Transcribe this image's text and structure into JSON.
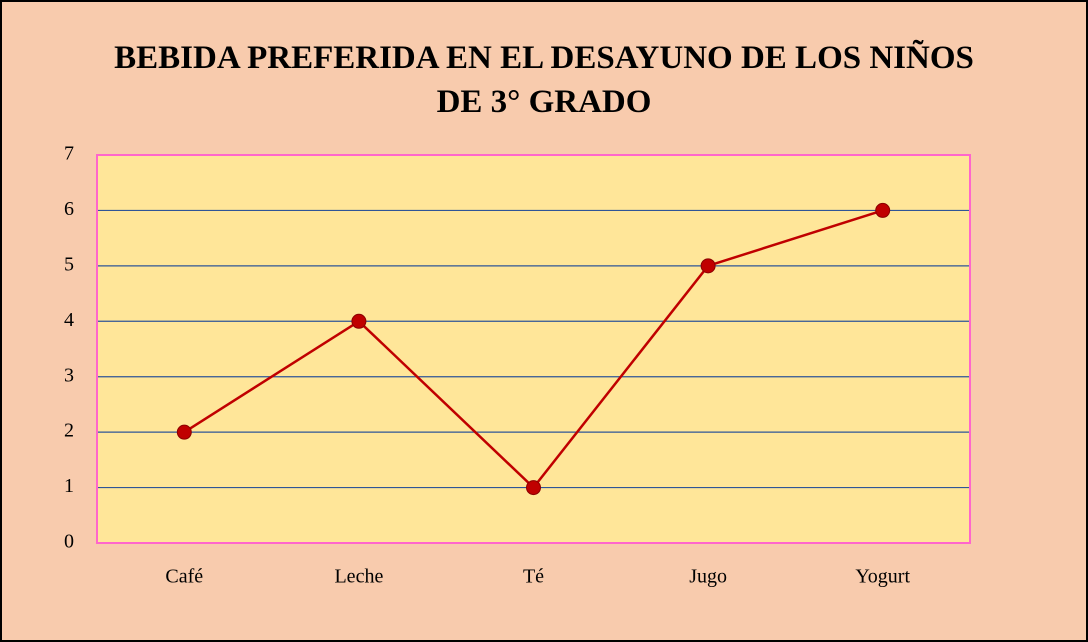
{
  "chart_data": {
    "type": "line",
    "title": "BEBIDA PREFERIDA EN EL DESAYUNO DE LOS NIÑOS DE 3° GRADO",
    "categories": [
      "Café",
      "Leche",
      "Té",
      "Jugo",
      "Yogurt"
    ],
    "values": [
      2,
      4,
      1,
      5,
      6
    ],
    "color": "#c00000",
    "ylim": [
      0,
      7
    ],
    "yticks": [
      0,
      1,
      2,
      3,
      4,
      5,
      6,
      7
    ],
    "grid": true
  }
}
